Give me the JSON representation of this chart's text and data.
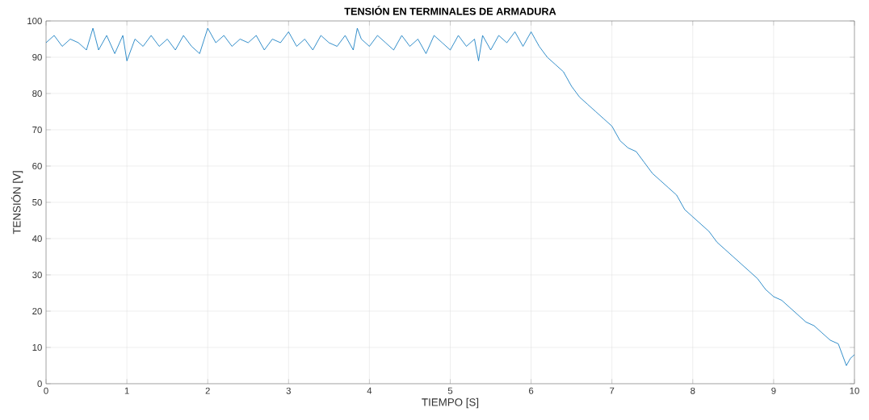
{
  "chart_data": {
    "type": "line",
    "title": "TENSIÓN EN TERMINALES DE ARMADURA",
    "xlabel": "TIEMPO [S]",
    "ylabel": "TENSIÓN [V]",
    "xlim": [
      0,
      10
    ],
    "ylim": [
      0,
      100
    ],
    "xticks": [
      0,
      1,
      2,
      3,
      4,
      5,
      6,
      7,
      8,
      9,
      10
    ],
    "yticks": [
      0,
      10,
      20,
      30,
      40,
      50,
      60,
      70,
      80,
      90,
      100
    ],
    "grid": true,
    "marker": "none",
    "line_style": "solid",
    "series": [
      {
        "color": "#0072bd",
        "x": [
          0,
          0.1,
          0.2,
          0.3,
          0.4,
          0.5,
          0.58,
          0.65,
          0.75,
          0.85,
          0.95,
          1.0,
          1.1,
          1.2,
          1.3,
          1.4,
          1.5,
          1.6,
          1.7,
          1.8,
          1.9,
          2.0,
          2.1,
          2.2,
          2.3,
          2.4,
          2.5,
          2.6,
          2.7,
          2.8,
          2.9,
          3.0,
          3.1,
          3.2,
          3.3,
          3.4,
          3.5,
          3.6,
          3.7,
          3.8,
          3.85,
          3.9,
          4.0,
          4.1,
          4.2,
          4.3,
          4.4,
          4.5,
          4.6,
          4.7,
          4.8,
          4.9,
          5.0,
          5.1,
          5.2,
          5.3,
          5.35,
          5.4,
          5.5,
          5.6,
          5.7,
          5.8,
          5.9,
          6.0,
          6.05,
          6.1,
          6.2,
          6.3,
          6.4,
          6.5,
          6.6,
          6.7,
          6.8,
          6.9,
          7.0,
          7.1,
          7.2,
          7.3,
          7.4,
          7.5,
          7.6,
          7.7,
          7.8,
          7.9,
          8.0,
          8.1,
          8.2,
          8.3,
          8.4,
          8.5,
          8.6,
          8.7,
          8.8,
          8.9,
          9.0,
          9.1,
          9.2,
          9.3,
          9.4,
          9.5,
          9.6,
          9.7,
          9.8,
          9.85,
          9.9,
          9.95,
          10
        ],
        "values": [
          94,
          96,
          93,
          95,
          94,
          92,
          98,
          92,
          96,
          91,
          96,
          89,
          95,
          93,
          96,
          93,
          95,
          92,
          96,
          93,
          91,
          98,
          94,
          96,
          93,
          95,
          94,
          96,
          92,
          95,
          94,
          97,
          93,
          95,
          92,
          96,
          94,
          93,
          96,
          92,
          98,
          95,
          93,
          96,
          94,
          92,
          96,
          93,
          95,
          91,
          96,
          94,
          92,
          96,
          93,
          95,
          89,
          96,
          92,
          96,
          94,
          97,
          93,
          97,
          95,
          93,
          90,
          88,
          86,
          82,
          79,
          77,
          75,
          73,
          71,
          67,
          65,
          64,
          61,
          58,
          56,
          54,
          52,
          48,
          46,
          44,
          42,
          39,
          37,
          35,
          33,
          31,
          29,
          26,
          24,
          23,
          21,
          19,
          17,
          16,
          14,
          12,
          11,
          8,
          5,
          7,
          8
        ]
      }
    ]
  }
}
